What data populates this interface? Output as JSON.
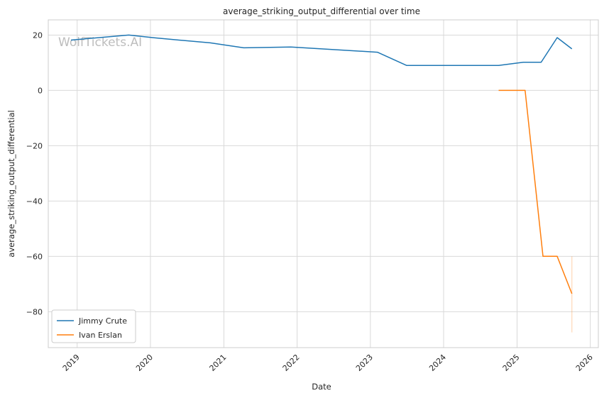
{
  "chart_data": {
    "type": "line",
    "title": "average_striking_output_differential over time",
    "xlabel": "Date",
    "ylabel": "average_striking_output_differential",
    "xlim": [
      "2018-08-10",
      "2026-02-10"
    ],
    "ylim": [
      -93,
      25.5
    ],
    "x_ticks": [
      "2019",
      "2020",
      "2021",
      "2022",
      "2023",
      "2024",
      "2025",
      "2026"
    ],
    "y_ticks": [
      20,
      0,
      -20,
      -40,
      -60,
      -80
    ],
    "grid": true,
    "legend_position": "lower-left",
    "watermark": "WolfTickets.AI",
    "series": [
      {
        "name": "Jimmy Crute",
        "color": "#1f77b4",
        "points": [
          [
            "2018-12-01",
            18.2
          ],
          [
            "2019-09-15",
            20.0
          ],
          [
            "2020-01-20",
            19.0
          ],
          [
            "2020-10-25",
            17.2
          ],
          [
            "2021-04-10",
            15.4
          ],
          [
            "2021-12-01",
            15.7
          ],
          [
            "2023-02-05",
            13.8
          ],
          [
            "2023-07-01",
            9.0
          ],
          [
            "2024-10-01",
            9.0
          ],
          [
            "2025-02-01",
            10.2
          ],
          [
            "2025-05-01",
            10.2
          ],
          [
            "2025-07-20",
            19.1
          ],
          [
            "2025-10-01",
            15.0
          ]
        ]
      },
      {
        "name": "Ivan Erslan",
        "color": "#ff7f0e",
        "points": [
          [
            "2024-10-01",
            0
          ],
          [
            "2025-02-10",
            0
          ],
          [
            "2025-05-10",
            -60
          ],
          [
            "2025-07-20",
            -60
          ],
          [
            "2025-10-01",
            -73.5
          ]
        ],
        "band": {
          "x": "2025-10-01",
          "low": -87.5,
          "high": -60
        }
      }
    ]
  }
}
